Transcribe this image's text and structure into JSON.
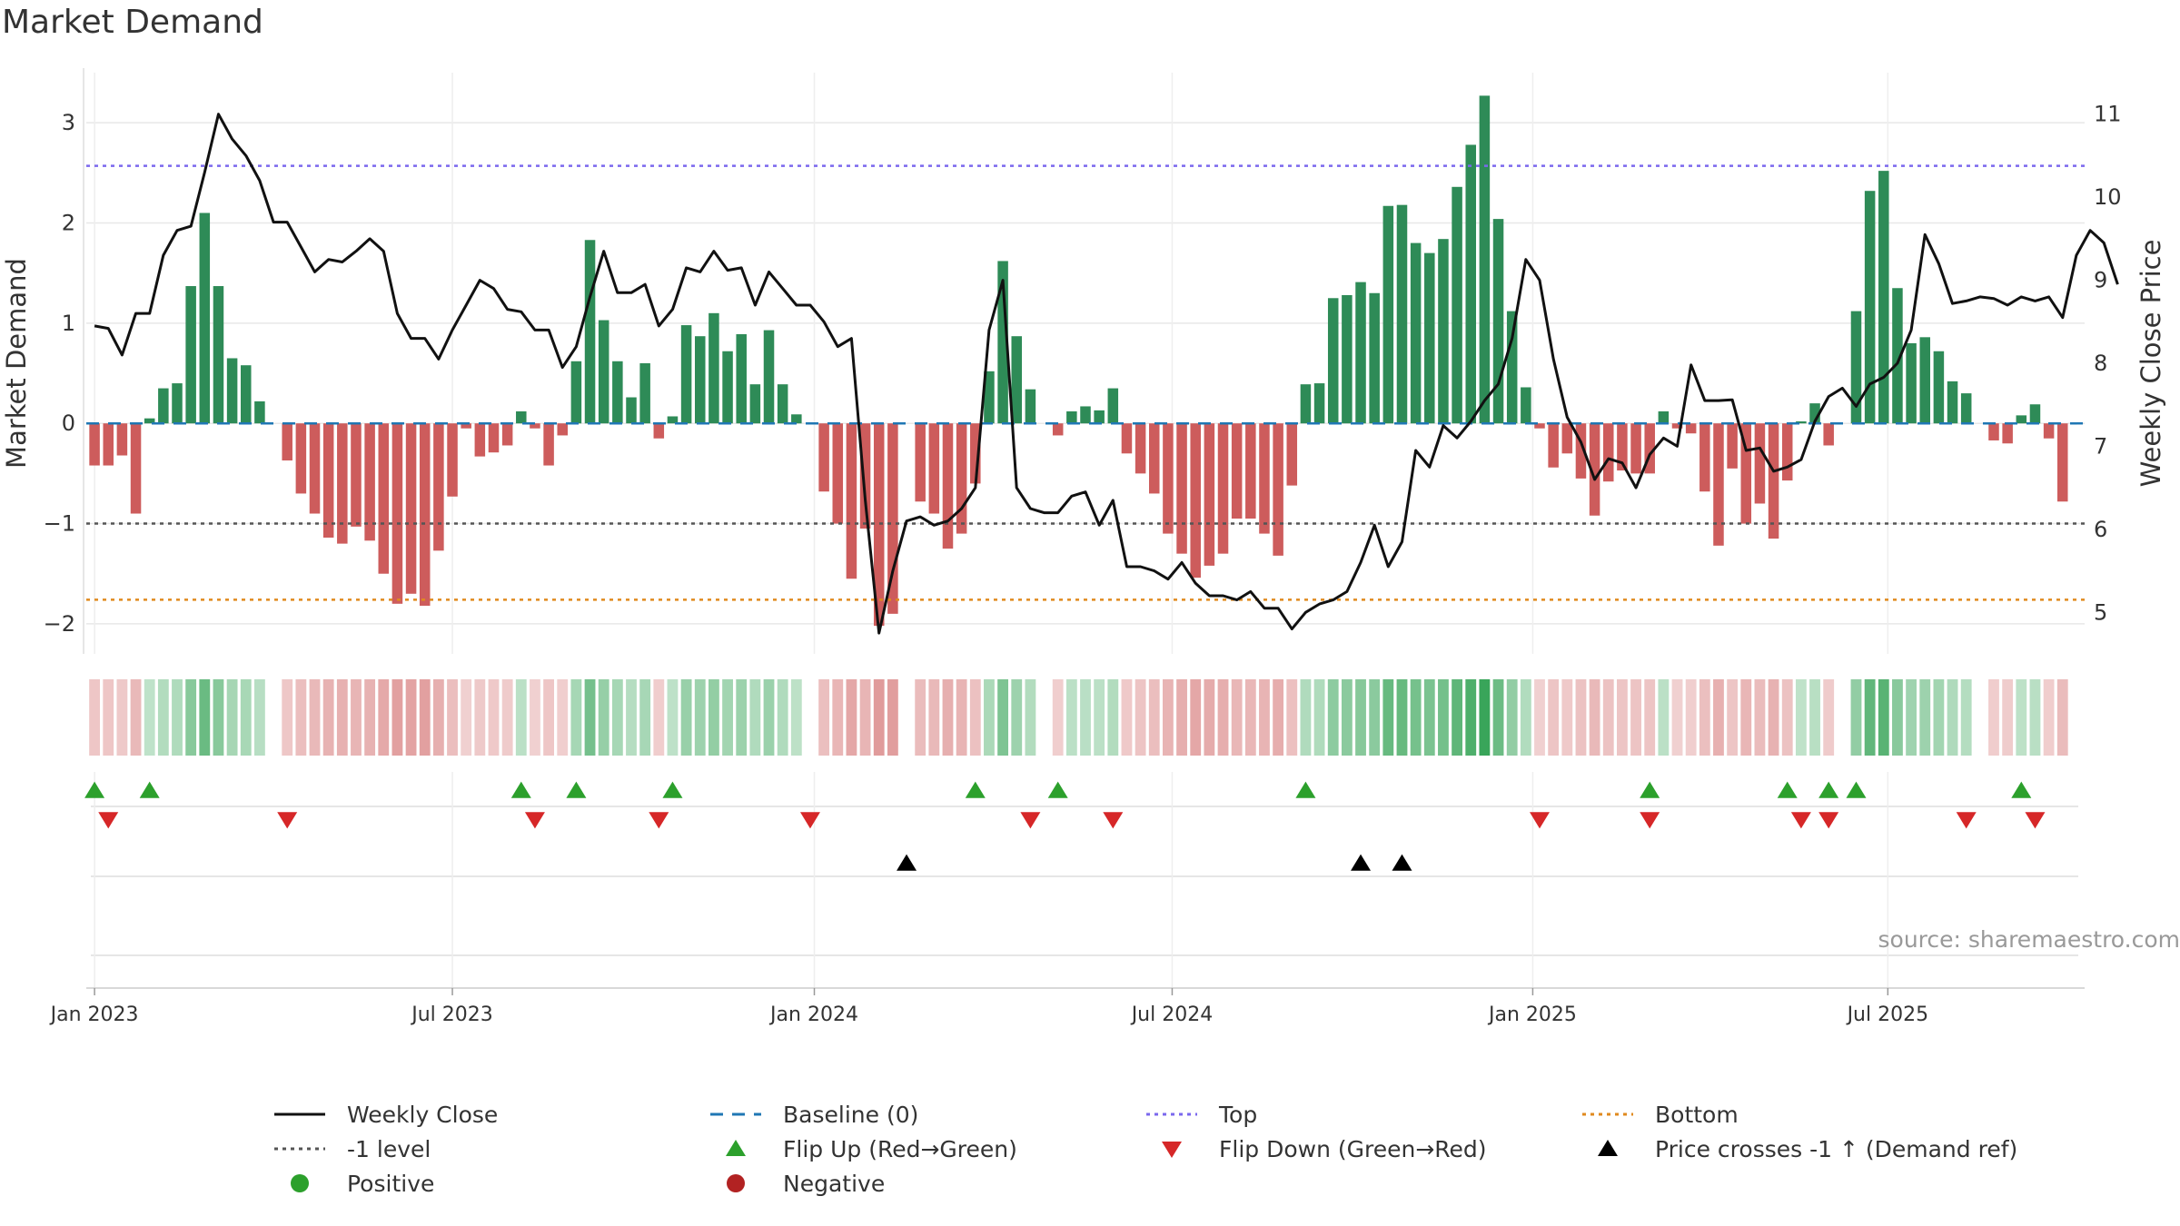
{
  "chart_data": {
    "type": "bar",
    "title": "Market Demand",
    "ylabel_left": "Market Demand",
    "ylabel_right": "Weekly Close Price",
    "y_left_range": [
      -2.3,
      3.5
    ],
    "y_right_range": [
      4.5,
      11.5
    ],
    "y_left_ticks": [
      {
        "value": 3,
        "label": "3"
      },
      {
        "value": 2,
        "label": "2"
      },
      {
        "value": 1,
        "label": "1"
      },
      {
        "value": 0,
        "label": "0"
      },
      {
        "value": -1,
        "label": "−1"
      },
      {
        "value": -2,
        "label": "−2"
      }
    ],
    "y_right_ticks": [
      {
        "value": 11,
        "label": "11"
      },
      {
        "value": 10,
        "label": "10"
      },
      {
        "value": 9,
        "label": "9"
      },
      {
        "value": 8,
        "label": "8"
      },
      {
        "value": 7,
        "label": "7"
      },
      {
        "value": 6,
        "label": "6"
      },
      {
        "value": 5,
        "label": "5"
      }
    ],
    "x_range_weeks": [
      -0.6,
      144.6
    ],
    "x_ticks": [
      {
        "week": 0,
        "label": "Jan 2023"
      },
      {
        "week": 26,
        "label": "Jul 2023"
      },
      {
        "week": 52.3,
        "label": "Jan 2024"
      },
      {
        "week": 78.3,
        "label": "Jul 2024"
      },
      {
        "week": 104.5,
        "label": "Jan 2025"
      },
      {
        "week": 130.3,
        "label": "Jul 2025"
      }
    ],
    "reference_lines": {
      "top": 2.57,
      "bottom": -1.76,
      "minus_one": -1.0,
      "baseline": 0
    },
    "demand": [
      -0.42,
      -0.42,
      -0.32,
      -0.9,
      0.05,
      0.35,
      0.4,
      1.37,
      2.1,
      1.37,
      0.65,
      0.58,
      0.22,
      0,
      -0.37,
      -0.7,
      -0.9,
      -1.14,
      -1.2,
      -1.03,
      -1.17,
      -1.5,
      -1.8,
      -1.7,
      -1.82,
      -1.27,
      -0.73,
      -0.05,
      -0.33,
      -0.29,
      -0.22,
      0.12,
      -0.05,
      -0.42,
      -0.12,
      0.62,
      1.83,
      1.03,
      0.62,
      0.26,
      0.6,
      -0.15,
      0.07,
      0.98,
      0.87,
      1.1,
      0.72,
      0.89,
      0.39,
      0.93,
      0.39,
      0.09,
      0,
      -0.68,
      -1.0,
      -1.55,
      -1.05,
      -2.02,
      -1.9,
      0,
      -0.78,
      -0.9,
      -1.25,
      -1.1,
      -0.6,
      0.52,
      1.62,
      0.87,
      0.34,
      0,
      -0.12,
      0.12,
      0.17,
      0.13,
      0.35,
      -0.3,
      -0.5,
      -0.7,
      -1.1,
      -1.3,
      -1.54,
      -1.42,
      -1.3,
      -0.95,
      -0.95,
      -1.1,
      -1.32,
      -0.62,
      0.39,
      0.4,
      1.25,
      1.28,
      1.41,
      1.3,
      2.17,
      2.18,
      1.8,
      1.7,
      1.84,
      2.36,
      2.78,
      3.27,
      2.04,
      1.12,
      0.36,
      -0.05,
      -0.44,
      -0.3,
      -0.55,
      -0.92,
      -0.58,
      -0.47,
      -0.5,
      -0.5,
      0.12,
      -0.05,
      -0.1,
      -0.68,
      -1.22,
      -0.45,
      -1.0,
      -0.8,
      -1.15,
      -0.57,
      0.02,
      0.2,
      -0.22,
      0,
      1.12,
      2.32,
      2.52,
      1.35,
      0.8,
      0.86,
      0.72,
      0.42,
      0.3,
      0,
      -0.17,
      -0.2,
      0.08,
      0.19,
      -0.15,
      -0.78
    ],
    "weekly_close": [
      8.45,
      8.42,
      8.1,
      8.6,
      8.6,
      9.3,
      9.6,
      9.65,
      10.3,
      11.0,
      10.7,
      10.5,
      10.2,
      9.7,
      9.7,
      9.4,
      9.1,
      9.25,
      9.22,
      9.35,
      9.5,
      9.35,
      8.6,
      8.3,
      8.3,
      8.05,
      8.4,
      8.7,
      9.0,
      8.9,
      8.65,
      8.62,
      8.4,
      8.4,
      7.95,
      8.2,
      8.8,
      9.35,
      8.85,
      8.85,
      8.95,
      8.45,
      8.65,
      9.15,
      9.1,
      9.35,
      9.12,
      9.15,
      8.7,
      9.1,
      8.9,
      8.7,
      8.7,
      8.5,
      8.2,
      8.3,
      6.35,
      4.75,
      5.5,
      6.1,
      6.15,
      6.05,
      6.1,
      6.25,
      6.5,
      8.4,
      9.0,
      6.5,
      6.25,
      6.2,
      6.2,
      6.4,
      6.45,
      6.05,
      6.35,
      5.55,
      5.55,
      5.5,
      5.4,
      5.6,
      5.35,
      5.2,
      5.2,
      5.15,
      5.25,
      5.05,
      5.05,
      4.8,
      5.0,
      5.1,
      5.15,
      5.25,
      5.6,
      6.05,
      5.55,
      5.85,
      6.95,
      6.75,
      7.25,
      7.1,
      7.3,
      7.55,
      7.75,
      8.3,
      9.25,
      9.0,
      8.05,
      7.35,
      7.05,
      6.6,
      6.85,
      6.8,
      6.5,
      6.9,
      7.1,
      7.0,
      7.98,
      7.55,
      7.55,
      7.56,
      6.95,
      6.98,
      6.7,
      6.75,
      6.84,
      7.3,
      7.6,
      7.7,
      7.48,
      7.75,
      7.83,
      8.0,
      8.4,
      9.55,
      9.2,
      8.72,
      8.75,
      8.8,
      8.78,
      8.7,
      8.8,
      8.75,
      8.8,
      8.55,
      9.3,
      9.6,
      9.45,
      8.95
    ],
    "flip_up_weeks": [
      0,
      4,
      31,
      35,
      42,
      64,
      70,
      88,
      113,
      123,
      126,
      128,
      140
    ],
    "flip_down_weeks": [
      1,
      14,
      32,
      41,
      52,
      68,
      74,
      105,
      113,
      124,
      126,
      136,
      141
    ],
    "price_crosses_weeks": [
      59,
      92,
      95
    ],
    "colors": {
      "positive_bar": "#2e8b57",
      "negative_bar": "#cd5c5c",
      "price_line": "#111111",
      "baseline": "#1f77b4",
      "top": "#7b68ee",
      "bottom": "#e08a1e",
      "minus_one": "#555555",
      "flip_up": "#2ca02c",
      "flip_down": "#d62728",
      "price_cross": "#000000",
      "positive_dot": "#2ca02c",
      "negative_dot": "#b22222"
    }
  },
  "source": "source: sharemaestro.com",
  "legend": [
    {
      "label": "Weekly Close",
      "icon": "solid-line",
      "color": "#111111"
    },
    {
      "label": "Baseline (0)",
      "icon": "dash-line",
      "color": "#1f77b4"
    },
    {
      "label": "Top",
      "icon": "dotted-line",
      "color": "#7b68ee"
    },
    {
      "label": "Bottom",
      "icon": "dotted-line",
      "color": "#e08a1e"
    },
    {
      "label": "-1 level",
      "icon": "dotted-line",
      "color": "#555555"
    },
    {
      "label": "Flip Up (Red→Green)",
      "icon": "triangle-up",
      "color": "#2ca02c"
    },
    {
      "label": "Flip Down (Green→Red)",
      "icon": "triangle-down",
      "color": "#d62728"
    },
    {
      "label": "Price crosses -1 ↑ (Demand ref)",
      "icon": "triangle-up",
      "color": "#000000"
    },
    {
      "label": "Positive",
      "icon": "dot",
      "color": "#2ca02c"
    },
    {
      "label": "Negative",
      "icon": "dot",
      "color": "#b22222"
    }
  ]
}
